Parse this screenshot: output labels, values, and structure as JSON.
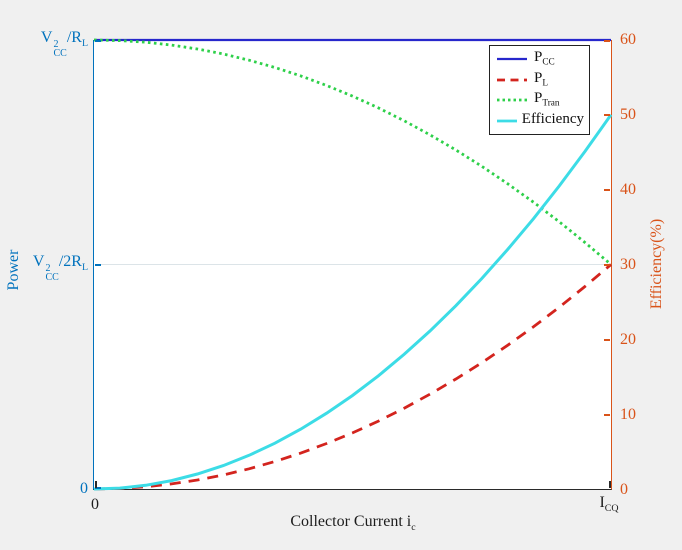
{
  "figure": {
    "background": "#f0f0f0",
    "plot_background": "#ffffff"
  },
  "labels": {
    "power_axis": "Power",
    "efficiency_axis": "Efficiency(%)",
    "xlabel_base": "Collector Current i",
    "xlabel_sub": "c",
    "xtick_zero": "0",
    "xtick_icq_base": "I",
    "xtick_icq_sub": "CQ",
    "ytick_zero": "0",
    "ytick_mid": {
      "p1": "V",
      "sup": "2",
      "sub": "CC",
      "p2": "/2R",
      "sub2": "L"
    },
    "ytick_top": {
      "p1": "V",
      "sup": "2",
      "sub": "CC",
      "p2": "/R",
      "sub2": "L"
    }
  },
  "legend": {
    "entries": [
      {
        "base": "P",
        "sub": "CC"
      },
      {
        "base": "P",
        "sub": "L"
      },
      {
        "base": "P",
        "sub": "Tran"
      },
      {
        "base": "Efficiency",
        "sub": ""
      }
    ]
  },
  "chart_data": {
    "type": "line",
    "title": "",
    "xlabel": "Collector Current i_c",
    "x_tick_labels": [
      "0",
      "I_CQ"
    ],
    "x_normalized": [
      0,
      0.05,
      0.1,
      0.15,
      0.2,
      0.25,
      0.3,
      0.35,
      0.4,
      0.45,
      0.5,
      0.55,
      0.6,
      0.65,
      0.7,
      0.75,
      0.8,
      0.85,
      0.9,
      0.95,
      1
    ],
    "left_axis": {
      "label": "Power",
      "color": "#0072bd",
      "units": "normalized to V_CC^2/R_L",
      "range": [
        0,
        1
      ],
      "tick_labels": [
        "0",
        "V_CC^2/2R_L",
        "V_CC^2/R_L"
      ],
      "tick_values": [
        0,
        0.5,
        1
      ]
    },
    "right_axis": {
      "label": "Efficiency(%)",
      "color": "#d95319",
      "range": [
        0,
        60
      ],
      "ticks": [
        0,
        10,
        20,
        30,
        40,
        50,
        60
      ]
    },
    "grid": {
      "horizontal_gridline_at_left_value": 0.5
    },
    "legend_position": "top-right-inside",
    "series": [
      {
        "name": "P_CC",
        "axis": "left",
        "color": "#2727cc",
        "style": "solid",
        "width": 2.2,
        "values": [
          1,
          1,
          1,
          1,
          1,
          1,
          1,
          1,
          1,
          1,
          1,
          1,
          1,
          1,
          1,
          1,
          1,
          1,
          1,
          1,
          1
        ]
      },
      {
        "name": "P_L",
        "axis": "left",
        "color": "#d3241e",
        "style": "dashed",
        "width": 2.8,
        "values": [
          0,
          0.00125,
          0.005,
          0.01125,
          0.02,
          0.03125,
          0.045,
          0.06125,
          0.08,
          0.10125,
          0.125,
          0.15125,
          0.18,
          0.21125,
          0.245,
          0.28125,
          0.32,
          0.36125,
          0.405,
          0.45125,
          0.5
        ]
      },
      {
        "name": "P_Tran",
        "axis": "left",
        "color": "#2ed04a",
        "style": "dotted",
        "width": 2.8,
        "values": [
          1,
          0.99875,
          0.995,
          0.98875,
          0.98,
          0.96875,
          0.955,
          0.93875,
          0.92,
          0.89875,
          0.875,
          0.84875,
          0.82,
          0.78875,
          0.755,
          0.71875,
          0.68,
          0.63875,
          0.595,
          0.54875,
          0.5
        ]
      },
      {
        "name": "Efficiency",
        "axis": "right",
        "color": "#3cdce6",
        "style": "solid",
        "width": 3,
        "values": [
          0,
          0.125,
          0.5,
          1.125,
          2,
          3.125,
          4.5,
          6.125,
          8,
          10.125,
          12.5,
          15.125,
          18,
          21.125,
          24.5,
          28.125,
          32,
          36.125,
          40.5,
          45.125,
          50
        ]
      }
    ]
  }
}
